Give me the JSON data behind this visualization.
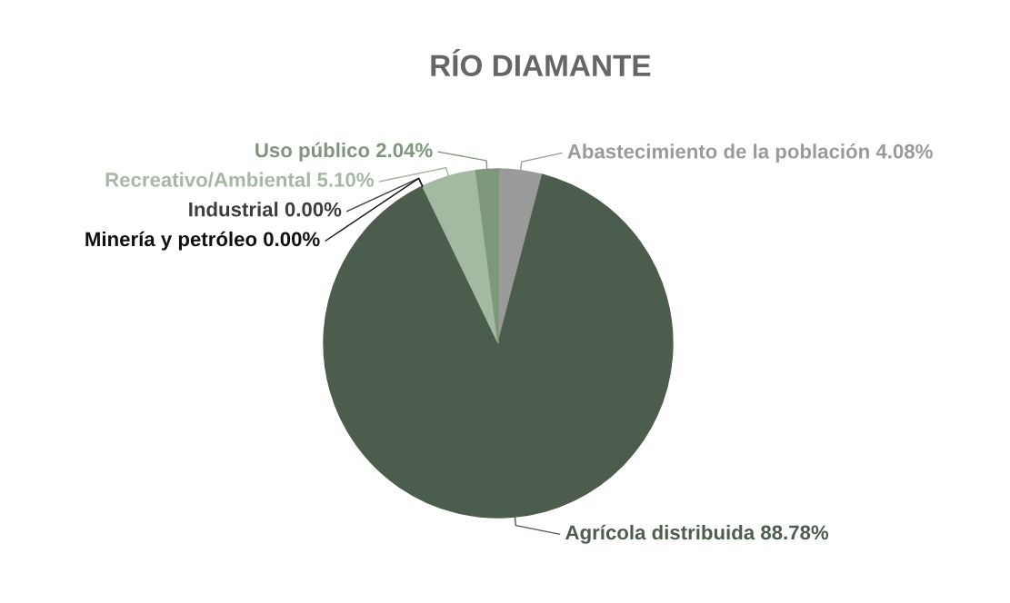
{
  "chart_data": {
    "type": "pie",
    "title": "RÍO DIAMANTE",
    "categories": [
      "Abastecimiento de la población",
      "Agrícola distribuida",
      "Minería y petróleo",
      "Industrial",
      "Recreativo/Ambiental",
      "Uso público"
    ],
    "values": [
      4.08,
      88.78,
      0,
      0,
      5.1,
      2.04
    ],
    "value_labels": [
      "4.08%",
      "88.78%",
      "0.00%",
      "0.00%",
      "5.10%",
      "2.04%"
    ],
    "colors": [
      "#9a9a9a",
      "#4d5d4d",
      "#111111",
      "#3d3d3d",
      "#a4b9a1",
      "#7d977a"
    ]
  }
}
